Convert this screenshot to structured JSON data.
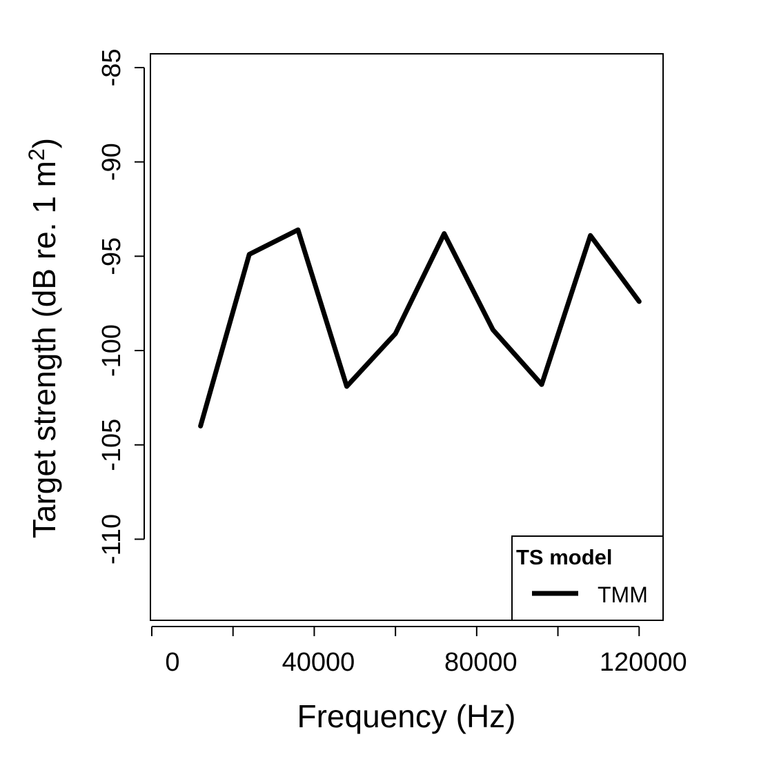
{
  "chart_data": {
    "type": "line",
    "title": "",
    "xlabel": "Frequency (Hz)",
    "ylabel": {
      "main": "Target strength (dB re. 1 m",
      "superscript": "2",
      "close": ")"
    },
    "xlim": [
      -340,
      125900
    ],
    "ylim": [
      -114.3,
      -84.27
    ],
    "xticks": [
      0,
      20000,
      40000,
      60000,
      80000,
      100000,
      120000
    ],
    "xtick_labels": [
      "0",
      "",
      "40000",
      "",
      "80000",
      "",
      "120000"
    ],
    "yticks": [
      -85,
      -90,
      -95,
      -100,
      -105,
      -110
    ],
    "ytick_labels": [
      "-85",
      "-90",
      "-95",
      "-100",
      "-105",
      "-110"
    ],
    "grid": false,
    "legend": {
      "title": "TS model",
      "placement": "bottom-right",
      "entries": [
        "TMM"
      ]
    },
    "series": [
      {
        "name": "TMM",
        "color": "#000000",
        "x": [
          12000,
          24000,
          36000,
          48000,
          60000,
          72000,
          84000,
          96000,
          108000,
          120000
        ],
        "y": [
          -104.0,
          -94.9,
          -93.6,
          -101.9,
          -99.1,
          -93.8,
          -98.9,
          -101.8,
          -93.9,
          -97.4
        ]
      }
    ]
  }
}
